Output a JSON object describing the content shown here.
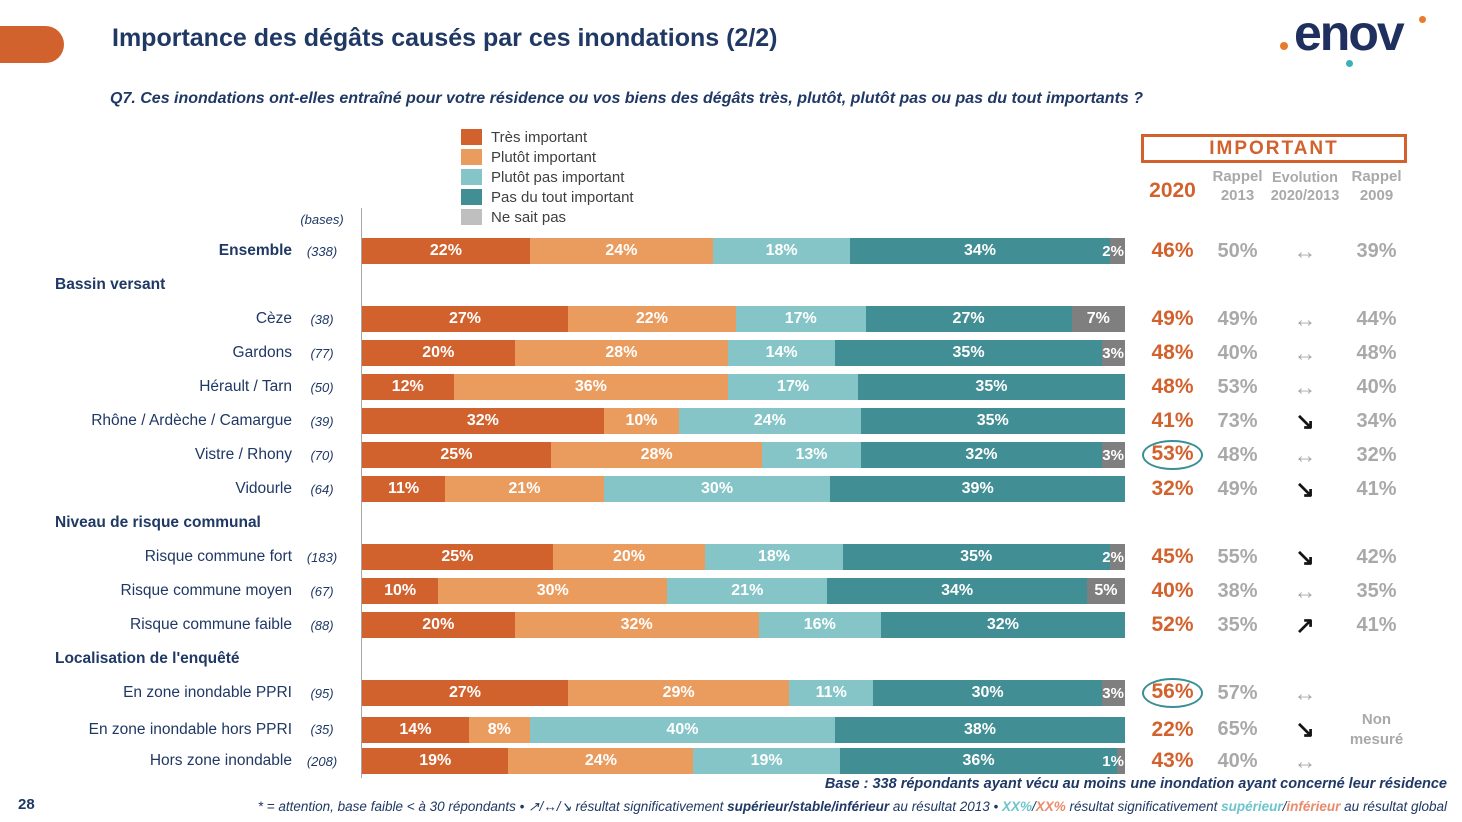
{
  "page_number": "28",
  "header": {
    "title": "Importance des dégâts causés par ces inondations (2/2)",
    "accent_color": "#D2622D"
  },
  "logo": {
    "text": "enov"
  },
  "question": "Q7. Ces inondations ont-elles entraîné pour votre résidence ou vos biens des dégâts très, plutôt, plutôt pas ou pas du tout importants ?",
  "legend": [
    {
      "label": "Très important",
      "color": "#D2622D"
    },
    {
      "label": "Plutôt important",
      "color": "#EA9B5E"
    },
    {
      "label": "Plutôt pas important",
      "color": "#85C5C7"
    },
    {
      "label": "Pas du tout important",
      "color": "#418E94"
    },
    {
      "label": "Ne sait pas",
      "color": "#BFBFBF"
    }
  ],
  "bases_header": "(bases)",
  "summary_table": {
    "box_label": "IMPORTANT",
    "columns": [
      {
        "label": "2020",
        "label2": ""
      },
      {
        "label": "Rappel",
        "label2": "2013"
      },
      {
        "label": "Evolution",
        "label2": "2020/2013"
      },
      {
        "label": "Rappel",
        "label2": "2009"
      }
    ],
    "non_mesure": "Non mesuré",
    "value_color_2020": "#D2622D",
    "value_color_recall": "#A9A9A9",
    "circle_color": "#3A8F95"
  },
  "chart_data": {
    "type": "bar",
    "stacked": true,
    "unit": "%",
    "title": "Importance des dégâts causés par ces inondations (2/2)",
    "legend_position": "top",
    "series_names": [
      "Très important",
      "Plutôt important",
      "Plutôt pas important",
      "Pas du tout important",
      "Ne sait pas"
    ],
    "series_colors": [
      "#D2622D",
      "#EA9B5E",
      "#85C5C7",
      "#418E94",
      "#7F7F7F"
    ],
    "evolution_glyphs": {
      "stable": "↔",
      "up": "↗",
      "down": "↘"
    },
    "non_mesure_label": "Non mesuré",
    "rows": [
      {
        "type": "row",
        "label": "Ensemble",
        "bold": true,
        "base": "(338)",
        "values": [
          22,
          24,
          18,
          34,
          2
        ],
        "important_2020": "46%",
        "circled": false,
        "rappel_2013": "50%",
        "evolution": "stable",
        "rappel_2009": "39%"
      },
      {
        "type": "section",
        "label": "Bassin versant"
      },
      {
        "type": "row",
        "label": "Cèze",
        "base": "(38)",
        "values": [
          27,
          22,
          17,
          27,
          7
        ],
        "important_2020": "49%",
        "circled": false,
        "rappel_2013": "49%",
        "evolution": "stable",
        "rappel_2009": "44%"
      },
      {
        "type": "row",
        "label": "Gardons",
        "base": "(77)",
        "values": [
          20,
          28,
          14,
          35,
          3
        ],
        "important_2020": "48%",
        "circled": false,
        "rappel_2013": "40%",
        "evolution": "stable",
        "rappel_2009": "48%"
      },
      {
        "type": "row",
        "label": "Hérault / Tarn",
        "base": "(50)",
        "values": [
          12,
          36,
          17,
          35,
          0
        ],
        "important_2020": "48%",
        "circled": false,
        "rappel_2013": "53%",
        "evolution": "stable",
        "rappel_2009": "40%"
      },
      {
        "type": "row",
        "label": "Rhône / Ardèche / Camargue",
        "base": "(39)",
        "values": [
          32,
          10,
          24,
          35,
          0
        ],
        "important_2020": "41%",
        "circled": false,
        "rappel_2013": "73%",
        "evolution": "down",
        "rappel_2009": "34%"
      },
      {
        "type": "row",
        "label": "Vistre / Rhony",
        "base": "(70)",
        "values": [
          25,
          28,
          13,
          32,
          3
        ],
        "important_2020": "53%",
        "circled": true,
        "rappel_2013": "48%",
        "evolution": "stable",
        "rappel_2009": "32%"
      },
      {
        "type": "row",
        "label": "Vidourle",
        "base": "(64)",
        "values": [
          11,
          21,
          30,
          39,
          0
        ],
        "important_2020": "32%",
        "circled": false,
        "rappel_2013": "49%",
        "evolution": "down",
        "rappel_2009": "41%"
      },
      {
        "type": "section",
        "label": "Niveau de risque communal"
      },
      {
        "type": "row",
        "label": "Risque commune fort",
        "base": "(183)",
        "values": [
          25,
          20,
          18,
          35,
          2
        ],
        "important_2020": "45%",
        "circled": false,
        "rappel_2013": "55%",
        "evolution": "down",
        "rappel_2009": "42%"
      },
      {
        "type": "row",
        "label": "Risque commune moyen",
        "base": "(67)",
        "values": [
          10,
          30,
          21,
          34,
          5
        ],
        "important_2020": "40%",
        "circled": false,
        "rappel_2013": "38%",
        "evolution": "stable",
        "rappel_2009": "35%"
      },
      {
        "type": "row",
        "label": "Risque commune faible",
        "base": "(88)",
        "values": [
          20,
          32,
          16,
          32,
          0
        ],
        "important_2020": "52%",
        "circled": false,
        "rappel_2013": "35%",
        "evolution": "up",
        "rappel_2009": "41%"
      },
      {
        "type": "section",
        "label": "Localisation de l'enquêté"
      },
      {
        "type": "row",
        "label": "En zone inondable PPRI",
        "base": "(95)",
        "values": [
          27,
          29,
          11,
          30,
          3
        ],
        "important_2020": "56%",
        "circled": true,
        "rappel_2013": "57%",
        "evolution": "stable",
        "rappel_2009": null
      },
      {
        "type": "row",
        "label": "En zone inondable hors PPRI",
        "base": "(35)",
        "values": [
          14,
          8,
          40,
          38,
          0
        ],
        "important_2020": "22%",
        "circled": false,
        "rappel_2013": "65%",
        "evolution": "down",
        "rappel_2009": "non_mesure"
      },
      {
        "type": "row",
        "label": "Hors zone inondable",
        "base": "(208)",
        "values": [
          19,
          24,
          19,
          36,
          1
        ],
        "important_2020": "43%",
        "circled": false,
        "rappel_2013": "40%",
        "evolution": "stable",
        "rappel_2009": null
      }
    ]
  },
  "footer": {
    "base_note": "Base : 338 répondants ayant vécu au moins une inondation ayant concerné leur résidence",
    "note_parts": [
      {
        "text": "* = attention, base faible < à 30 répondants • ",
        "style": "plain"
      },
      {
        "text": "↗/↔/↘",
        "style": "plain"
      },
      {
        "text": " résultat significativement ",
        "style": "plain"
      },
      {
        "text": "supérieur/stable/inférieur",
        "style": "bold"
      },
      {
        "text": " au résultat 2013 • ",
        "style": "plain"
      },
      {
        "text": "XX%",
        "style": "teal"
      },
      {
        "text": "/",
        "style": "plain"
      },
      {
        "text": "XX%",
        "style": "orange"
      },
      {
        "text": " résultat significativement ",
        "style": "plain"
      },
      {
        "text": "supérieur",
        "style": "teal"
      },
      {
        "text": "/",
        "style": "plain"
      },
      {
        "text": "inférieur",
        "style": "orange"
      },
      {
        "text": " au résultat global",
        "style": "plain"
      }
    ]
  },
  "colors": {
    "navy": "#1F3864",
    "orange_accent": "#D2622D",
    "gray_value": "#A9A9A9",
    "arrow_black": "#141414",
    "note_teal": "#6EC4CC",
    "note_orange": "#E98B6B"
  }
}
